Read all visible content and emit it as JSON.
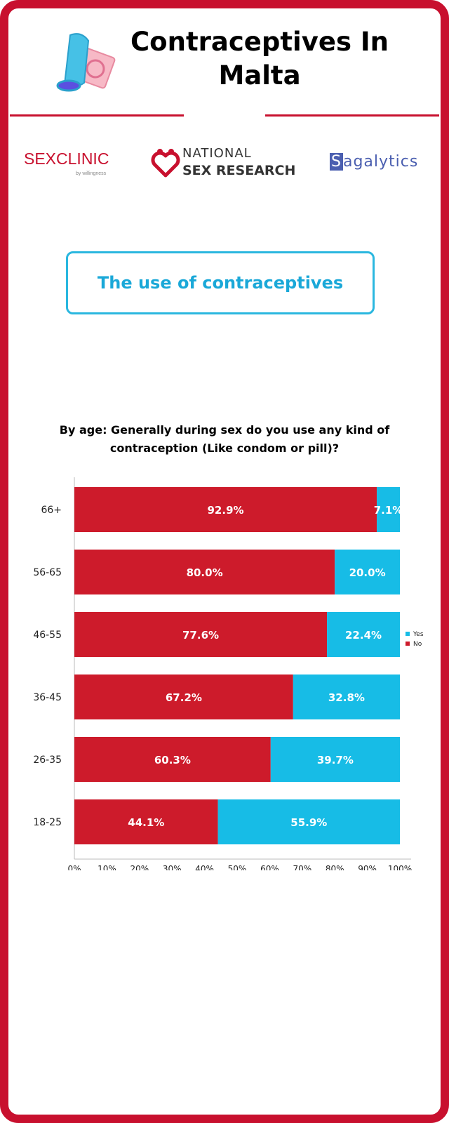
{
  "header": {
    "title": "Contraceptives In Malta"
  },
  "logos": {
    "sexclinic": "SEXCLINIC",
    "sexclinic_sub": "by willingness",
    "nsr_line1": "NATIONAL",
    "nsr_line2": "SEX RESEARCH",
    "sagalytics_first": "S",
    "sagalytics_rest": "agalytics"
  },
  "section": {
    "title": "The use of contraceptives"
  },
  "colors": {
    "brand_red": "#c8102e",
    "no": "#cd1b2b",
    "yes": "#17bce6",
    "section_accent": "#1aa8d8"
  },
  "chart_data": {
    "type": "bar",
    "orientation": "horizontal",
    "stacked": true,
    "title": "By age: Generally during sex do you use any kind of contraception (Like condom or pill)?",
    "categories": [
      "66+",
      "56-65",
      "46-55",
      "36-45",
      "26-35",
      "18-25"
    ],
    "series": [
      {
        "name": "No",
        "values": [
          92.9,
          80.0,
          77.6,
          67.2,
          60.3,
          44.1
        ],
        "labels": [
          "92.9%",
          "80.0%",
          "77.6%",
          "67.2%",
          "60.3%",
          "44.1%"
        ]
      },
      {
        "name": "Yes",
        "values": [
          7.1,
          20.0,
          22.4,
          32.8,
          39.7,
          55.9
        ],
        "labels": [
          "7.1%",
          "20.0%",
          "22.4%",
          "32.8%",
          "39.7%",
          "55.9%"
        ]
      }
    ],
    "xlim": [
      0,
      100
    ],
    "xticks": [
      "0%",
      "10%",
      "20%",
      "30%",
      "40%",
      "50%",
      "60%",
      "70%",
      "80%",
      "90%",
      "100%"
    ],
    "legend": [
      {
        "name": "Yes"
      },
      {
        "name": "No"
      }
    ],
    "legend_position": "right",
    "grid": false
  }
}
